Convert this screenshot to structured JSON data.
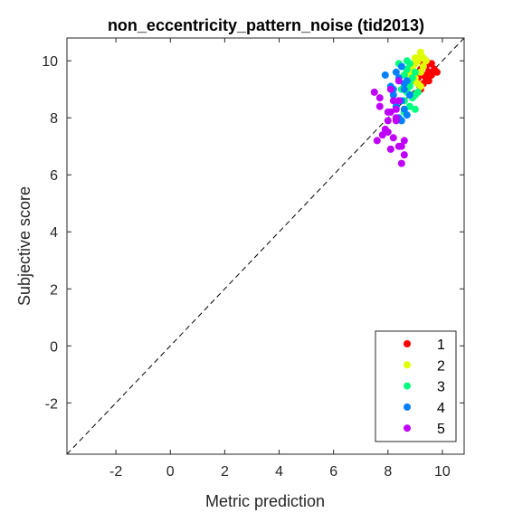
{
  "chart_data": {
    "type": "scatter",
    "title": "non_eccentricity_pattern_noise (tid2013)",
    "xlabel": "Metric prediction",
    "ylabel": "Subjective score",
    "xlim": [
      -3.8,
      10.8
    ],
    "ylim": [
      -3.8,
      10.8
    ],
    "xticks": [
      -2,
      0,
      2,
      4,
      6,
      8,
      10
    ],
    "yticks": [
      -2,
      0,
      2,
      4,
      6,
      8,
      10
    ],
    "xtick_labels": [
      "-2",
      "0",
      "2",
      "4",
      "6",
      "8",
      "10"
    ],
    "ytick_labels": [
      "-2",
      "0",
      "2",
      "4",
      "6",
      "8",
      "10"
    ],
    "grid": false,
    "box": true,
    "reference_line": {
      "style": "dashed",
      "from": [
        -3.8,
        -3.8
      ],
      "to": [
        10.8,
        10.8
      ],
      "color": "#000000"
    },
    "legend": {
      "position": "bottom-right"
    },
    "series": [
      {
        "name": "1",
        "color": "#ff0000",
        "points": [
          [
            9.3,
            9.5
          ],
          [
            9.2,
            9.7
          ],
          [
            9.4,
            9.8
          ],
          [
            9.5,
            9.6
          ],
          [
            9.1,
            9.4
          ],
          [
            9.3,
            9.2
          ],
          [
            9.6,
            9.9
          ],
          [
            9.4,
            10.0
          ],
          [
            9.7,
            9.7
          ],
          [
            9.2,
            9.0
          ],
          [
            9.5,
            9.3
          ],
          [
            9.0,
            9.3
          ],
          [
            9.3,
            9.9
          ],
          [
            9.8,
            9.6
          ],
          [
            9.4,
            9.4
          ],
          [
            9.6,
            9.5
          ]
        ]
      },
      {
        "name": "2",
        "color": "#dfff00",
        "points": [
          [
            9.2,
            10.2
          ],
          [
            9.3,
            10.1
          ],
          [
            9.1,
            10.0
          ],
          [
            9.0,
            9.9
          ],
          [
            9.2,
            9.6
          ],
          [
            8.9,
            9.7
          ],
          [
            9.3,
            9.8
          ],
          [
            9.0,
            9.4
          ],
          [
            8.8,
            9.5
          ],
          [
            9.1,
            9.2
          ],
          [
            8.9,
            9.3
          ],
          [
            9.2,
            9.1
          ],
          [
            9.4,
            10.0
          ],
          [
            8.7,
            9.6
          ],
          [
            9.0,
            10.1
          ],
          [
            9.2,
            10.3
          ]
        ]
      },
      {
        "name": "3",
        "color": "#00ff7f",
        "points": [
          [
            8.7,
            10.0
          ],
          [
            8.6,
            9.5
          ],
          [
            8.8,
            9.2
          ],
          [
            9.0,
            8.8
          ],
          [
            8.9,
            8.7
          ],
          [
            8.5,
            9.0
          ],
          [
            8.8,
            8.4
          ],
          [
            9.0,
            8.3
          ],
          [
            8.6,
            8.6
          ],
          [
            8.9,
            9.4
          ],
          [
            8.7,
            9.7
          ],
          [
            8.4,
            9.9
          ],
          [
            9.1,
            8.9
          ],
          [
            8.7,
            8.9
          ],
          [
            8.8,
            9.1
          ],
          [
            9.0,
            9.6
          ],
          [
            8.8,
            9.9
          ],
          [
            8.6,
            8.2
          ]
        ]
      },
      {
        "name": "4",
        "color": "#0080ff",
        "points": [
          [
            7.9,
            9.5
          ],
          [
            8.2,
            9.0
          ],
          [
            8.5,
            9.8
          ],
          [
            8.6,
            9.2
          ],
          [
            8.3,
            8.4
          ],
          [
            8.5,
            8.6
          ],
          [
            8.6,
            8.3
          ],
          [
            8.4,
            8.0
          ],
          [
            8.5,
            7.9
          ],
          [
            8.2,
            8.8
          ],
          [
            8.6,
            9.0
          ],
          [
            8.7,
            9.3
          ],
          [
            8.4,
            9.4
          ],
          [
            8.3,
            9.6
          ],
          [
            8.8,
            8.8
          ],
          [
            8.1,
            9.1
          ],
          [
            8.4,
            8.6
          ],
          [
            8.7,
            8.1
          ]
        ]
      },
      {
        "name": "5",
        "color": "#bf00ff",
        "points": [
          [
            7.5,
            8.9
          ],
          [
            7.7,
            8.7
          ],
          [
            7.7,
            8.4
          ],
          [
            8.1,
            8.2
          ],
          [
            8.3,
            8.3
          ],
          [
            8.4,
            8.6
          ],
          [
            8.1,
            9.0
          ],
          [
            8.4,
            9.3
          ],
          [
            8.3,
            7.9
          ],
          [
            8.0,
            7.9
          ],
          [
            7.9,
            7.6
          ],
          [
            7.8,
            7.4
          ],
          [
            8.0,
            7.5
          ],
          [
            8.2,
            7.3
          ],
          [
            8.4,
            7.0
          ],
          [
            8.5,
            7.0
          ],
          [
            8.6,
            7.2
          ],
          [
            7.6,
            7.2
          ],
          [
            8.1,
            6.9
          ],
          [
            8.5,
            6.4
          ],
          [
            8.6,
            6.7
          ],
          [
            8.3,
            8.0
          ],
          [
            8.2,
            8.6
          ],
          [
            8.0,
            8.2
          ]
        ]
      }
    ]
  }
}
